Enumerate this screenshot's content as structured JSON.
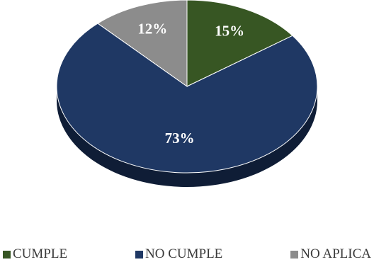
{
  "chart_data": {
    "type": "pie",
    "categories": [
      "CUMPLE",
      "NO CUMPLE",
      "NO APLICA"
    ],
    "values": [
      15,
      73,
      12
    ],
    "labels": [
      "15%",
      "73%",
      "12%"
    ],
    "colors": [
      "#375623",
      "#1F3864",
      "#8C8C8C"
    ],
    "side_colors": [
      "#213315",
      "#0f1d36",
      "#555555"
    ],
    "title": "",
    "legend_position": "bottom",
    "style": "3d"
  }
}
